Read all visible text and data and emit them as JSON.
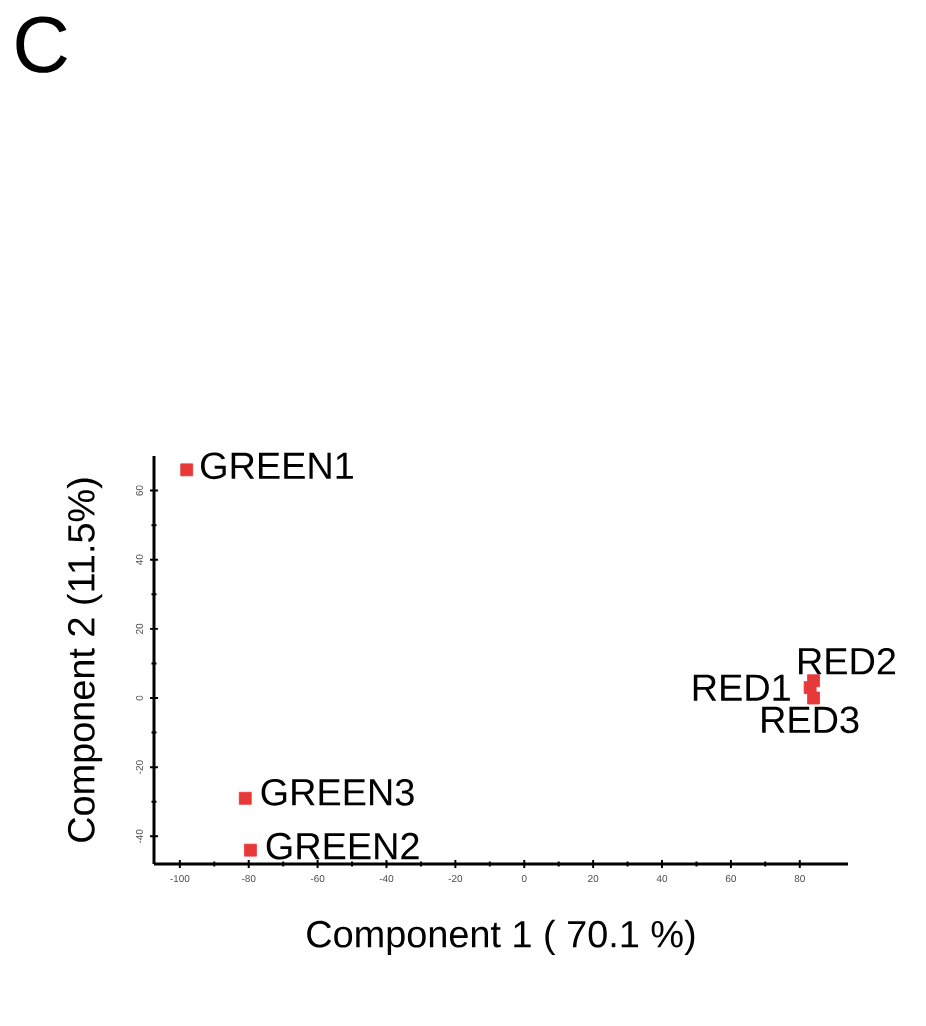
{
  "chart_data": {
    "type": "scatter",
    "title": "C",
    "xlabel": "Component 1 ( 70.1 %)",
    "ylabel": "Component 2 (11.5%)",
    "x": [
      -98,
      -79.5,
      -81,
      83,
      84,
      84
    ],
    "values": [
      66,
      -44,
      -29,
      3,
      5,
      0
    ],
    "color": "#e8393a",
    "marker": "square",
    "xlim": [
      -107.5,
      94
    ],
    "ylim": [
      -48,
      70
    ],
    "xticks": [
      -100,
      -80,
      -60,
      -40,
      -20,
      0,
      20,
      40,
      60,
      80
    ],
    "yticks": [
      -40,
      -20,
      0,
      20,
      40,
      60
    ],
    "annotations": [
      {
        "text": "GREEN1",
        "x": -98,
        "y": 66
      },
      {
        "text": "GREEN2",
        "x": -79.5,
        "y": -44
      },
      {
        "text": "GREEN3",
        "x": -81,
        "y": -29
      },
      {
        "text": "RED1",
        "x": 83,
        "y": 3
      },
      {
        "text": "RED2",
        "x": 84,
        "y": 5
      },
      {
        "text": "RED3",
        "x": 84,
        "y": 0
      }
    ],
    "grid": false
  }
}
